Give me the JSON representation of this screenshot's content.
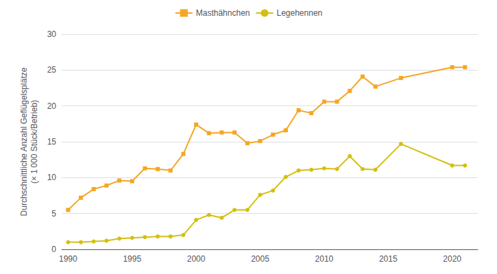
{
  "chart_data": {
    "type": "line",
    "ylabel": "Durchschnittliche Anzahl Geflügelsplätze\n(× 1 000 Stück/Betrieb)",
    "x": [
      1990,
      1991,
      1992,
      1993,
      1994,
      1995,
      1996,
      1997,
      1998,
      1999,
      2000,
      2001,
      2002,
      2003,
      2004,
      2005,
      2006,
      2007,
      2008,
      2009,
      2010,
      2011,
      2012,
      2013,
      2014,
      2016,
      2020,
      2021
    ],
    "series": [
      {
        "name": "Masthähnchen",
        "color": "#F5A623",
        "marker": "square",
        "values": [
          5.5,
          7.2,
          8.4,
          8.9,
          9.6,
          9.5,
          11.3,
          11.2,
          11.0,
          13.3,
          17.4,
          16.2,
          16.3,
          16.3,
          14.8,
          15.1,
          16.0,
          16.6,
          19.4,
          19.0,
          20.6,
          20.6,
          22.1,
          24.1,
          22.7,
          23.9,
          25.4,
          25.4
        ]
      },
      {
        "name": "Legehennen",
        "color": "#D4C010",
        "marker": "circle",
        "values": [
          1.0,
          1.0,
          1.1,
          1.2,
          1.5,
          1.6,
          1.7,
          1.8,
          1.8,
          2.0,
          4.1,
          4.8,
          4.4,
          5.5,
          5.5,
          7.6,
          8.2,
          10.1,
          11.0,
          11.1,
          11.3,
          11.2,
          13.0,
          11.2,
          11.1,
          14.7,
          11.7,
          11.7
        ]
      }
    ],
    "xlim": [
      1989.5,
      2022
    ],
    "xticks": [
      1990,
      1995,
      2000,
      2005,
      2010,
      2015,
      2020
    ],
    "ylim": [
      0,
      30
    ],
    "yticks": [
      0,
      5,
      10,
      15,
      20,
      25,
      30
    ],
    "grid": true,
    "legend": "top"
  }
}
